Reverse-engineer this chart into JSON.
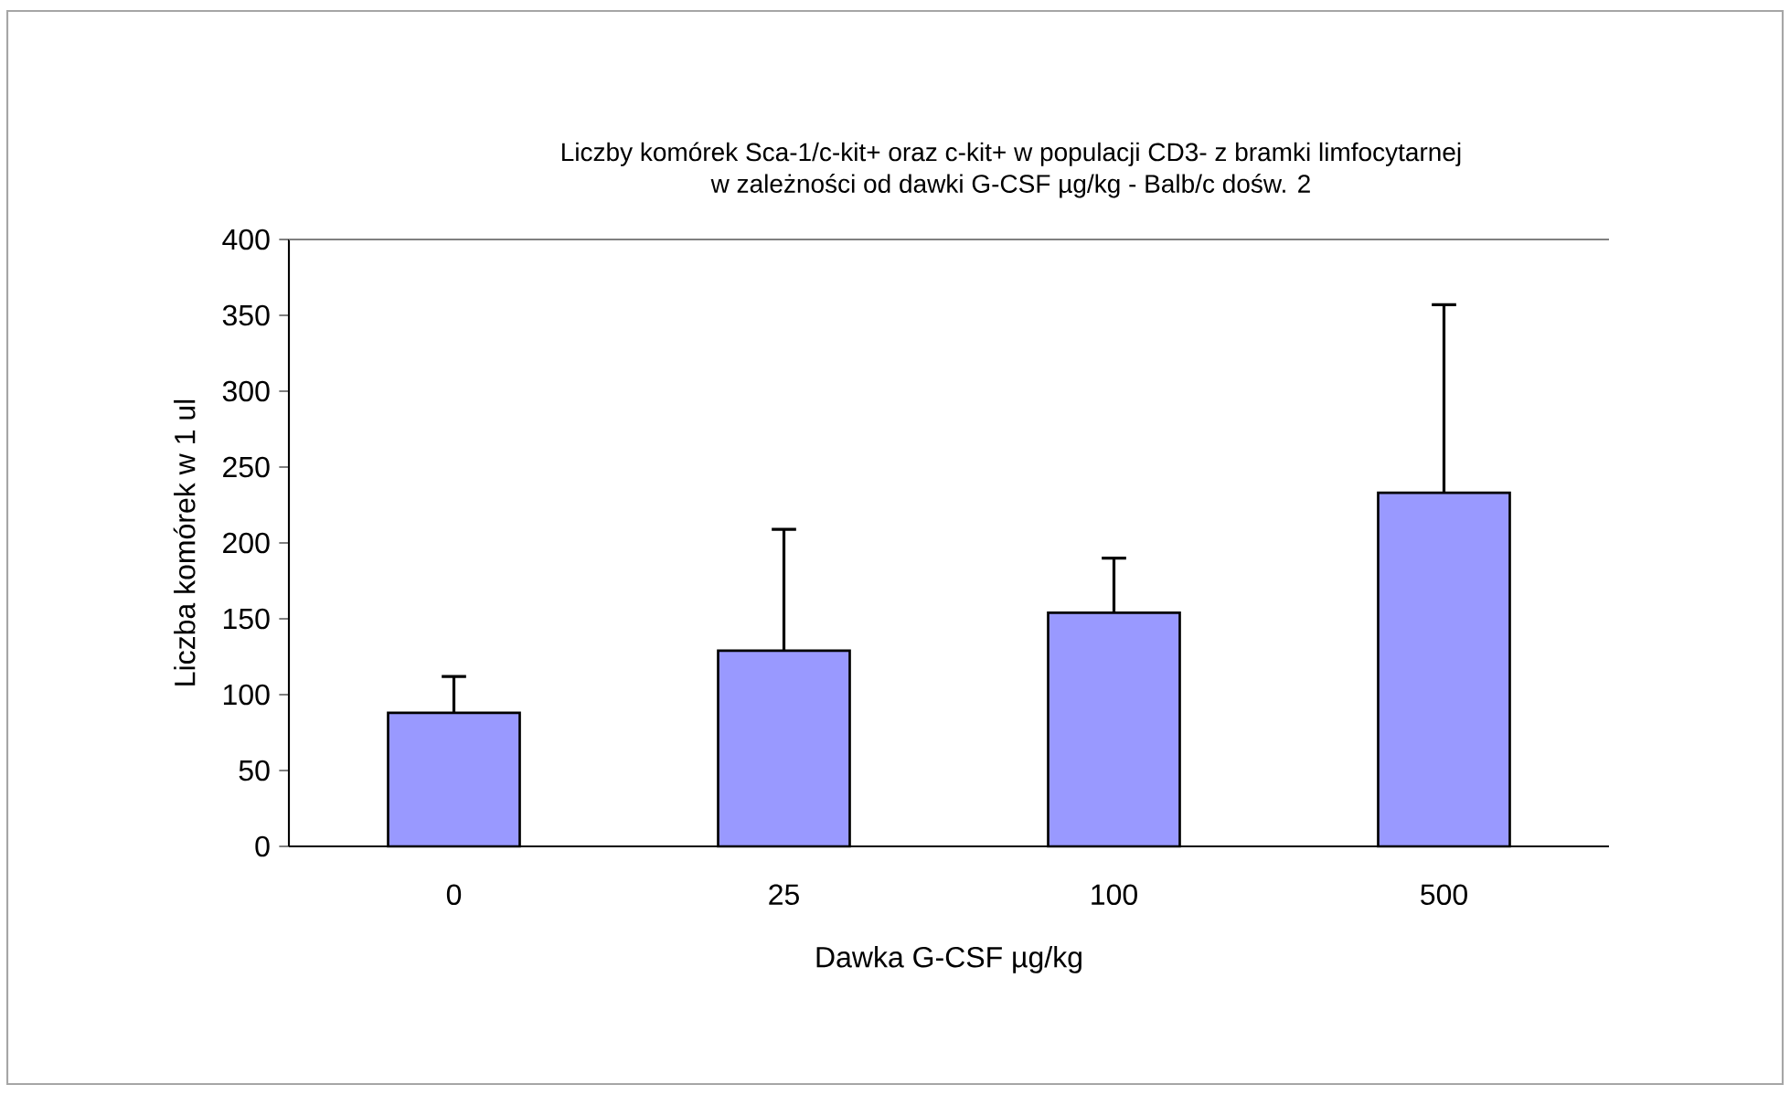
{
  "chart_data": {
    "type": "bar",
    "title": "Liczby komórek Sca-1/c-kit+ oraz c-kit+ w populacji CD3- z bramki limfocytarnej",
    "subtitle": "w zależności od dawki G-CSF µg/kg - Balb/c dośw. 2",
    "xlabel": "Dawka G-CSF µg/kg",
    "ylabel": "Liczba komórek w 1 ul",
    "categories": [
      "0",
      "25",
      "100",
      "500"
    ],
    "values": [
      88,
      129,
      154,
      233
    ],
    "errors": [
      [
        88,
        112
      ],
      [
        129,
        209
      ],
      [
        154,
        190
      ],
      [
        233,
        357
      ]
    ],
    "color": "#9999ff",
    "ylim": [
      0,
      400
    ],
    "yticks": [
      0,
      50,
      100,
      150,
      200,
      250,
      300,
      350,
      400
    ],
    "grid": false
  }
}
